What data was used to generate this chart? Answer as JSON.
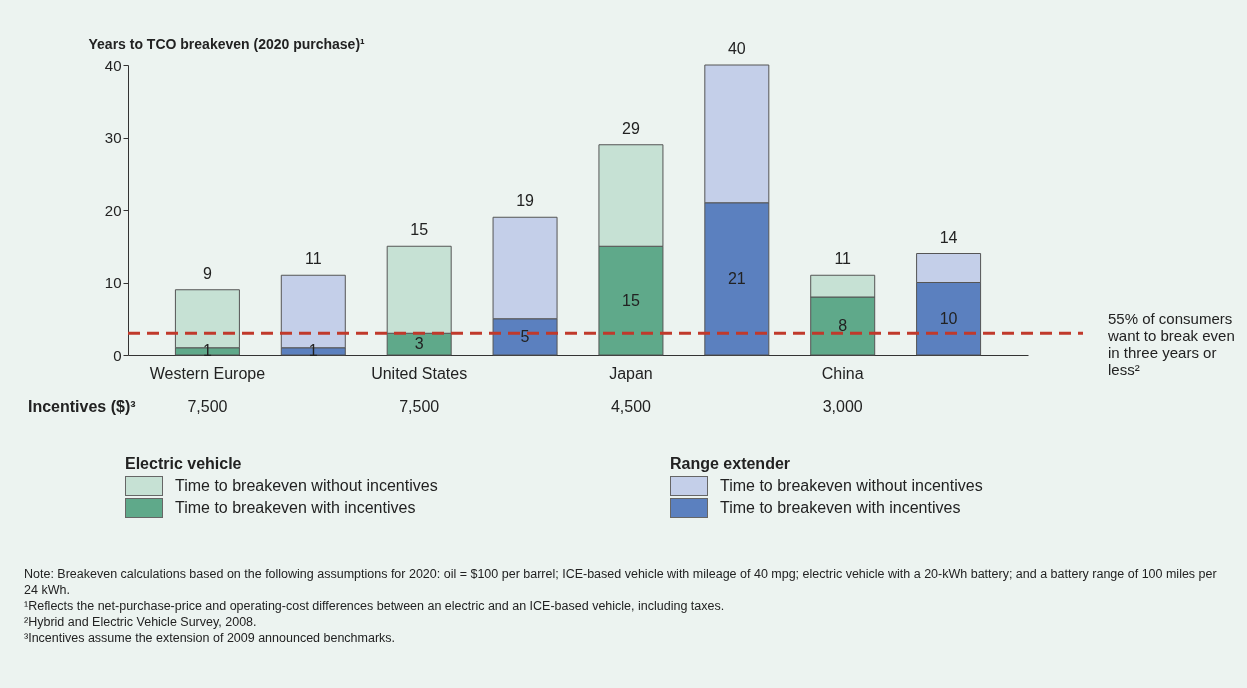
{
  "chart_data": {
    "type": "bar",
    "ylabel": "Years to TCO breakeven (2020 purchase)¹",
    "categories": [
      "Western Europe",
      null,
      "United States",
      null,
      "Japan",
      null,
      "China",
      null
    ],
    "series": [
      {
        "name": "Time to breakeven with incentives",
        "color": "#5fa98a",
        "values": [
          1,
          null,
          3,
          null,
          15,
          null,
          8,
          null
        ],
        "value_labels": [
          "1",
          null,
          "3",
          null,
          "15",
          null,
          "8",
          null
        ]
      },
      {
        "name": "Time to breakeven without incentives",
        "color": "#c6e1d4",
        "values": [
          8,
          null,
          12,
          null,
          14,
          null,
          3,
          null
        ]
      },
      {
        "name": "Time to breakeven with incentives",
        "color": "#5b80bf",
        "values": [
          null,
          1,
          null,
          5,
          null,
          21,
          null,
          10
        ],
        "value_labels": [
          null,
          "1",
          null,
          "5",
          null,
          "21",
          null,
          "10"
        ]
      },
      {
        "name": "Time to breakeven without incentives",
        "color": "#c4cfe9",
        "values": [
          null,
          10,
          null,
          14,
          null,
          19,
          null,
          4
        ]
      }
    ],
    "totals": [
      "9",
      "11",
      "15",
      "19",
      "29",
      "40",
      "11",
      "14"
    ],
    "stacked": true,
    "ylim": [
      0,
      40
    ],
    "yticks": [
      0,
      10,
      20,
      30,
      40
    ],
    "grid": false,
    "legend": "bottom",
    "ref_lines": [
      {
        "axis": "y",
        "value": 3,
        "label": "55% of consumers want to break even in three years or less²",
        "color": "#c0392b",
        "line_style": "dashed"
      }
    ],
    "annotations": [
      "Electric vehicle",
      "Range extender",
      "Incentives ($)³",
      "7,500",
      "7,500",
      "4,500",
      "3,000",
      "Note: Breakeven calculations based on the following assumptions for 2020: oil = $100 per barrel; ICE-based vehicle with mileage of 40 mpg; electric vehicle with a 20-kWh battery; and a battery range of 100 miles per 24 kWh.",
      "¹Reflects the net-purchase-price and operating-cost differences between an electric and an ICE-based vehicle, including taxes.",
      "²Hybrid and Electric Vehicle Survey, 2008.",
      "³Incentives assume the extension of 2009 announced benchmarks."
    ]
  }
}
